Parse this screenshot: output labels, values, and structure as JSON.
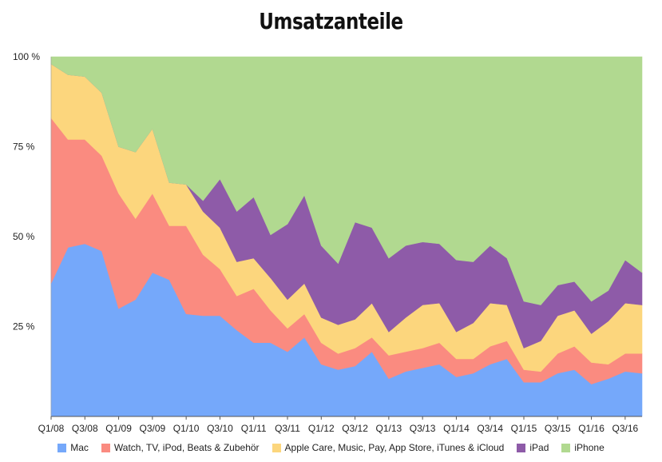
{
  "chart_data": {
    "type": "area",
    "stacked": true,
    "title": "Umsatzanteile",
    "xlabel": "",
    "ylabel": "",
    "ylim": [
      0,
      100
    ],
    "y_ticks": [
      25,
      50,
      75,
      100
    ],
    "y_tick_labels": [
      "25 %",
      "50 %",
      "75 %",
      "100 %"
    ],
    "grid": false,
    "legend_position": "bottom",
    "x_tick_labels": [
      "Q1/08",
      "Q3/08",
      "Q1/09",
      "Q3/09",
      "Q1/10",
      "Q3/10",
      "Q1/11",
      "Q3/11",
      "Q1/12",
      "Q3/12",
      "Q1/13",
      "Q3/13",
      "Q1/14",
      "Q3/14",
      "Q1/15",
      "Q3/15",
      "Q1/16",
      "Q3/16"
    ],
    "x": [
      "Q1/08",
      "Q2/08",
      "Q3/08",
      "Q4/08",
      "Q1/09",
      "Q2/09",
      "Q3/09",
      "Q4/09",
      "Q1/10",
      "Q2/10",
      "Q3/10",
      "Q4/10",
      "Q1/11",
      "Q2/11",
      "Q3/11",
      "Q4/11",
      "Q1/12",
      "Q2/12",
      "Q3/12",
      "Q4/12",
      "Q1/13",
      "Q2/13",
      "Q3/13",
      "Q4/13",
      "Q1/14",
      "Q2/14",
      "Q3/14",
      "Q4/14",
      "Q1/15",
      "Q2/15",
      "Q3/15",
      "Q4/15",
      "Q1/16",
      "Q2/16",
      "Q3/16",
      "Q4/16"
    ],
    "series": [
      {
        "name": "Mac",
        "color": "#75a8fa",
        "values": [
          37,
          47,
          48,
          46,
          30,
          32.5,
          40,
          38,
          28.5,
          28,
          28,
          24,
          20.5,
          20.5,
          18,
          22,
          14.5,
          13,
          14,
          18,
          10.5,
          12.5,
          13.5,
          14.5,
          11,
          12,
          14.5,
          16,
          9.5,
          9.5,
          12,
          13,
          9,
          10.5,
          12.5,
          12
        ]
      },
      {
        "name": "Watch, TV, iPod, Beats & Zubehör",
        "color": "#fa8b80",
        "values": [
          46,
          30,
          29,
          26.5,
          32,
          22.5,
          22,
          15,
          24.5,
          17,
          13,
          9.5,
          15,
          9,
          6.5,
          6.5,
          6,
          4.5,
          5,
          4,
          6.5,
          5.5,
          5.5,
          6,
          5,
          4,
          5,
          5,
          3.5,
          3,
          5.5,
          6.5,
          6,
          4,
          5,
          5.5
        ]
      },
      {
        "name": "Apple Care, Music, Pay, App Store, iTunes & iCloud",
        "color": "#fcd67d",
        "values": [
          15,
          18,
          17.5,
          17.5,
          13,
          18.5,
          18,
          12,
          11.5,
          12,
          11.5,
          9.5,
          8.5,
          9,
          8,
          8.5,
          7,
          8,
          8,
          9.5,
          6.5,
          9.5,
          12,
          11,
          7.5,
          10,
          12,
          10,
          6,
          8.5,
          10.5,
          10,
          8,
          12,
          14,
          13.5
        ]
      },
      {
        "name": "iPad",
        "color": "#8e5ba8",
        "values": [
          0,
          0,
          0,
          0,
          0,
          0,
          0,
          0,
          0,
          3,
          13.5,
          14,
          17,
          12,
          21,
          24.5,
          20,
          17,
          27,
          21,
          20.5,
          20,
          17.5,
          16.5,
          20,
          17,
          16,
          13,
          13,
          10,
          8.5,
          8,
          9,
          8.5,
          12,
          9
        ]
      },
      {
        "name": "iPhone",
        "color": "#b1d990",
        "values": [
          2,
          5,
          5.5,
          10,
          25,
          26.5,
          20,
          35,
          35.5,
          40,
          34,
          43,
          39,
          49.5,
          46.5,
          38.5,
          52.5,
          57.5,
          46,
          47.5,
          56,
          52.5,
          51.5,
          52,
          56.5,
          57,
          52.5,
          56,
          68,
          69,
          63.5,
          62.5,
          68,
          65,
          56.5,
          60
        ]
      }
    ]
  }
}
